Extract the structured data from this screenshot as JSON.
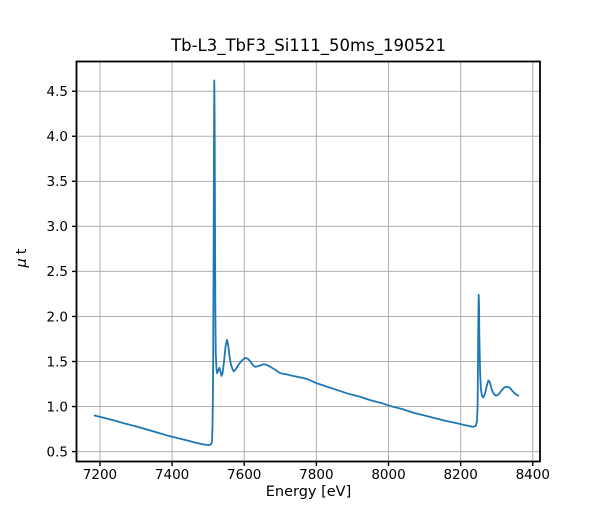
{
  "figure": {
    "title": "Tb-L3_TbF3_Si111_50ms_190521",
    "xlabel": "Energy [eV]",
    "ylabel": "μ t",
    "ylabel_mu": "μ",
    "ylabel_t": "t"
  },
  "chart_data": {
    "type": "line",
    "title": "Tb-L3_TbF3_Si111_50ms_190521",
    "xlabel": "Energy [eV]",
    "ylabel": "μ t",
    "xlim": [
      7135,
      8420
    ],
    "ylim": [
      0.39,
      4.83
    ],
    "x_ticks": [
      7200,
      7400,
      7600,
      7800,
      8000,
      8200,
      8400
    ],
    "x_tick_labels": [
      "7200",
      "7400",
      "7600",
      "7800",
      "8000",
      "8200",
      "8400"
    ],
    "y_ticks": [
      0.5,
      1.0,
      1.5,
      2.0,
      2.5,
      3.0,
      3.5,
      4.0,
      4.5
    ],
    "y_tick_labels": [
      "0.5",
      "1.0",
      "1.5",
      "2.0",
      "2.5",
      "3.0",
      "3.5",
      "4.0",
      "4.5"
    ],
    "grid": true,
    "legend": false,
    "colors": {
      "line": "#1f77b4",
      "grid": "#b0b0b0",
      "axis": "#000000",
      "background": "#ffffff"
    },
    "series": [
      {
        "name": "Tb-L3_TbF3_Si111_50ms_190521",
        "points": [
          [
            7185,
            0.9
          ],
          [
            7210,
            0.875
          ],
          [
            7240,
            0.845
          ],
          [
            7270,
            0.81
          ],
          [
            7300,
            0.78
          ],
          [
            7330,
            0.745
          ],
          [
            7360,
            0.71
          ],
          [
            7390,
            0.675
          ],
          [
            7420,
            0.645
          ],
          [
            7445,
            0.62
          ],
          [
            7465,
            0.6
          ],
          [
            7480,
            0.585
          ],
          [
            7492,
            0.576
          ],
          [
            7502,
            0.572
          ],
          [
            7507,
            0.578
          ],
          [
            7510,
            0.6
          ],
          [
            7511,
            0.65
          ],
          [
            7512,
            0.78
          ],
          [
            7513,
            1.05
          ],
          [
            7514,
            1.6
          ],
          [
            7515,
            2.6
          ],
          [
            7516,
            3.85
          ],
          [
            7517,
            4.62
          ],
          [
            7518,
            4.15
          ],
          [
            7519,
            3.0
          ],
          [
            7520,
            2.05
          ],
          [
            7521,
            1.6
          ],
          [
            7523,
            1.42
          ],
          [
            7525,
            1.37
          ],
          [
            7528,
            1.4
          ],
          [
            7531,
            1.43
          ],
          [
            7534,
            1.39
          ],
          [
            7537,
            1.34
          ],
          [
            7540,
            1.37
          ],
          [
            7544,
            1.5
          ],
          [
            7548,
            1.66
          ],
          [
            7552,
            1.74
          ],
          [
            7555,
            1.7
          ],
          [
            7559,
            1.56
          ],
          [
            7563,
            1.47
          ],
          [
            7567,
            1.42
          ],
          [
            7571,
            1.39
          ],
          [
            7576,
            1.41
          ],
          [
            7582,
            1.45
          ],
          [
            7589,
            1.49
          ],
          [
            7596,
            1.52
          ],
          [
            7603,
            1.54
          ],
          [
            7610,
            1.53
          ],
          [
            7617,
            1.5
          ],
          [
            7624,
            1.46
          ],
          [
            7631,
            1.44
          ],
          [
            7639,
            1.45
          ],
          [
            7647,
            1.46
          ],
          [
            7655,
            1.47
          ],
          [
            7663,
            1.46
          ],
          [
            7673,
            1.44
          ],
          [
            7685,
            1.41
          ],
          [
            7700,
            1.37
          ],
          [
            7715,
            1.36
          ],
          [
            7730,
            1.345
          ],
          [
            7748,
            1.33
          ],
          [
            7765,
            1.315
          ],
          [
            7778,
            1.3
          ],
          [
            7800,
            1.26
          ],
          [
            7830,
            1.22
          ],
          [
            7860,
            1.18
          ],
          [
            7890,
            1.14
          ],
          [
            7920,
            1.11
          ],
          [
            7950,
            1.07
          ],
          [
            7980,
            1.04
          ],
          [
            8010,
            1.0
          ],
          [
            8040,
            0.97
          ],
          [
            8070,
            0.93
          ],
          [
            8100,
            0.9
          ],
          [
            8130,
            0.87
          ],
          [
            8160,
            0.84
          ],
          [
            8190,
            0.815
          ],
          [
            8210,
            0.795
          ],
          [
            8225,
            0.782
          ],
          [
            8235,
            0.776
          ],
          [
            8242,
            0.785
          ],
          [
            8245,
            0.83
          ],
          [
            8247,
            1.0
          ],
          [
            8248,
            1.45
          ],
          [
            8249,
            1.95
          ],
          [
            8250,
            2.24
          ],
          [
            8251,
            2.12
          ],
          [
            8252,
            1.75
          ],
          [
            8254,
            1.38
          ],
          [
            8256,
            1.2
          ],
          [
            8259,
            1.12
          ],
          [
            8263,
            1.1
          ],
          [
            8268,
            1.15
          ],
          [
            8273,
            1.24
          ],
          [
            8277,
            1.29
          ],
          [
            8281,
            1.27
          ],
          [
            8286,
            1.19
          ],
          [
            8292,
            1.14
          ],
          [
            8298,
            1.12
          ],
          [
            8304,
            1.13
          ],
          [
            8312,
            1.17
          ],
          [
            8320,
            1.21
          ],
          [
            8328,
            1.22
          ],
          [
            8336,
            1.21
          ],
          [
            8344,
            1.17
          ],
          [
            8352,
            1.14
          ],
          [
            8360,
            1.12
          ]
        ]
      }
    ]
  }
}
